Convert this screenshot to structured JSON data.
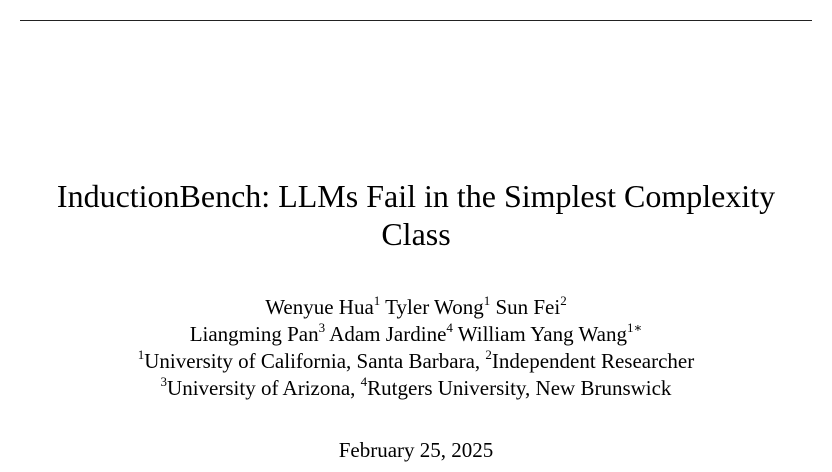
{
  "paper": {
    "title_line1": "InductionBench: LLMs Fail in the Simplest Complexity",
    "title_line2": "Class",
    "authors": [
      {
        "name": "Wenyue Hua",
        "mark": "1"
      },
      {
        "name": "Tyler Wong",
        "mark": "1"
      },
      {
        "name": "Sun Fei",
        "mark": "2"
      },
      {
        "name": "Liangming Pan",
        "mark": "3"
      },
      {
        "name": "Adam Jardine",
        "mark": "4"
      },
      {
        "name": "William Yang Wang",
        "mark": "1∗"
      }
    ],
    "affiliations": [
      {
        "mark": "1",
        "name": "University of California, Santa Barbara, "
      },
      {
        "mark": "2",
        "name": "Independent Researcher"
      },
      {
        "mark": "3",
        "name": "University of Arizona, "
      },
      {
        "mark": "4",
        "name": "Rutgers University, New Brunswick"
      }
    ],
    "date": "February 25, 2025"
  }
}
